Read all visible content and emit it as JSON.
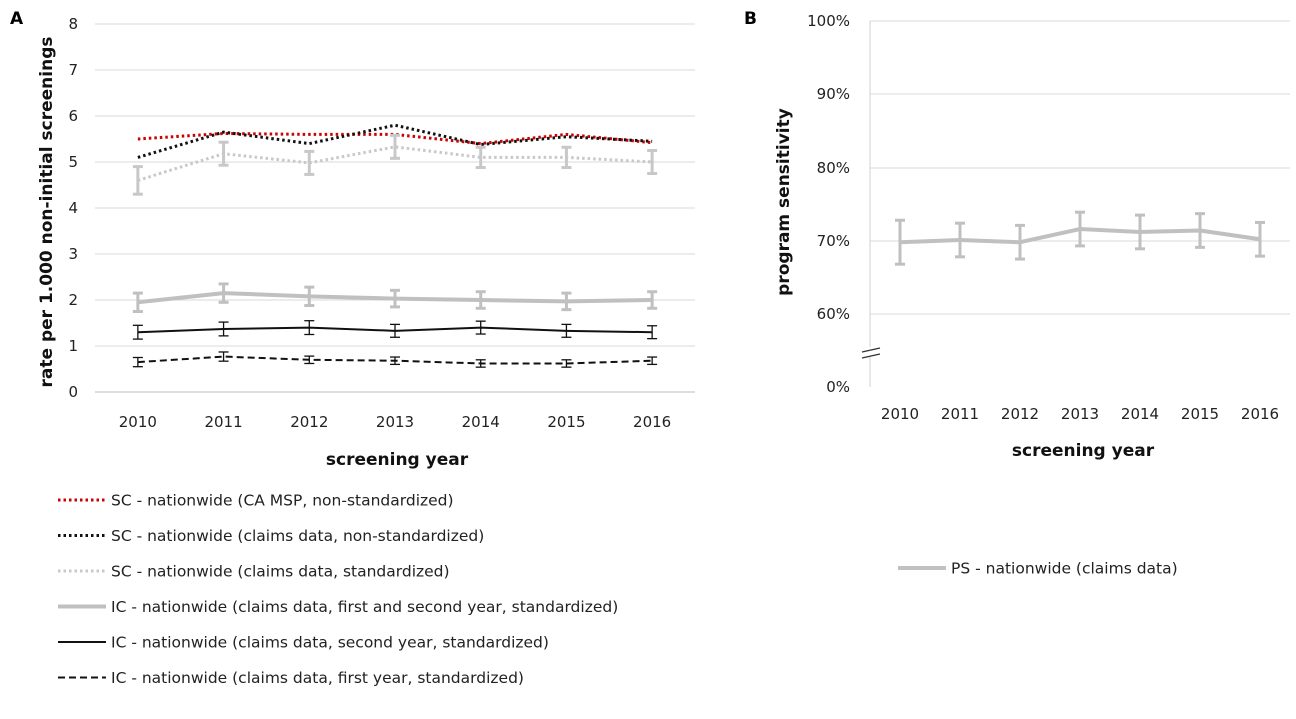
{
  "chart_data": [
    {
      "type": "line",
      "panel": "A",
      "xlabel": "screening year",
      "ylabel": "rate per 1.000 non-initial screenings",
      "ylim": [
        0,
        8
      ],
      "yticks": [
        "0",
        "1",
        "2",
        "3",
        "4",
        "5",
        "6",
        "7",
        "8"
      ],
      "categories": [
        "2010",
        "2011",
        "2012",
        "2013",
        "2014",
        "2015",
        "2016"
      ],
      "grid": true,
      "legend_position": "bottom",
      "series": [
        {
          "name": "SC - nationwide (CA MSP, non-standardized)",
          "color": "#cc0000",
          "style": "dotted",
          "values": [
            5.5,
            5.62,
            5.6,
            5.6,
            5.4,
            5.6,
            5.42
          ]
        },
        {
          "name": "SC - nationwide (claims data, non-standardized)",
          "color": "#111111",
          "style": "dotted",
          "values": [
            5.1,
            5.65,
            5.4,
            5.8,
            5.38,
            5.55,
            5.45
          ]
        },
        {
          "name": "SC - nationwide (claims data, standardized)",
          "color": "#c8c8c8",
          "style": "dotted",
          "values": [
            4.6,
            5.18,
            4.98,
            5.33,
            5.1,
            5.1,
            5.0
          ],
          "errors": [
            0.3,
            0.25,
            0.25,
            0.25,
            0.22,
            0.22,
            0.25
          ]
        },
        {
          "name": "IC - nationwide (claims data, first and second year, standardized)",
          "color": "#c0c0c0",
          "style": "solid-thick",
          "values": [
            1.95,
            2.15,
            2.08,
            2.03,
            2.0,
            1.97,
            2.0
          ],
          "errors": [
            0.2,
            0.2,
            0.2,
            0.18,
            0.18,
            0.18,
            0.18
          ]
        },
        {
          "name": "IC - nationwide (claims data, second year, standardized)",
          "color": "#111111",
          "style": "solid",
          "values": [
            1.3,
            1.37,
            1.4,
            1.33,
            1.4,
            1.33,
            1.3
          ],
          "errors": [
            0.15,
            0.15,
            0.15,
            0.14,
            0.14,
            0.14,
            0.14
          ]
        },
        {
          "name": "IC - nationwide (claims data, first year, standardized)",
          "color": "#111111",
          "style": "dashed",
          "values": [
            0.65,
            0.77,
            0.7,
            0.68,
            0.62,
            0.62,
            0.68
          ],
          "errors": [
            0.1,
            0.1,
            0.08,
            0.08,
            0.08,
            0.08,
            0.08
          ]
        }
      ]
    },
    {
      "type": "line",
      "panel": "B",
      "xlabel": "screening year",
      "ylabel": "program sensitivity",
      "yticks": [
        "0%",
        "60%",
        "70%",
        "80%",
        "90%",
        "100%"
      ],
      "axis_break": true,
      "categories": [
        "2010",
        "2011",
        "2012",
        "2013",
        "2014",
        "2015",
        "2016"
      ],
      "grid": true,
      "legend_position": "bottom",
      "series": [
        {
          "name": "PS - nationwide (claims data)",
          "color": "#c0c0c0",
          "style": "solid-thick",
          "values": [
            0.698,
            0.701,
            0.698,
            0.716,
            0.712,
            0.714,
            0.702
          ],
          "errors": [
            0.03,
            0.023,
            0.023,
            0.023,
            0.023,
            0.023,
            0.023
          ]
        }
      ]
    }
  ]
}
